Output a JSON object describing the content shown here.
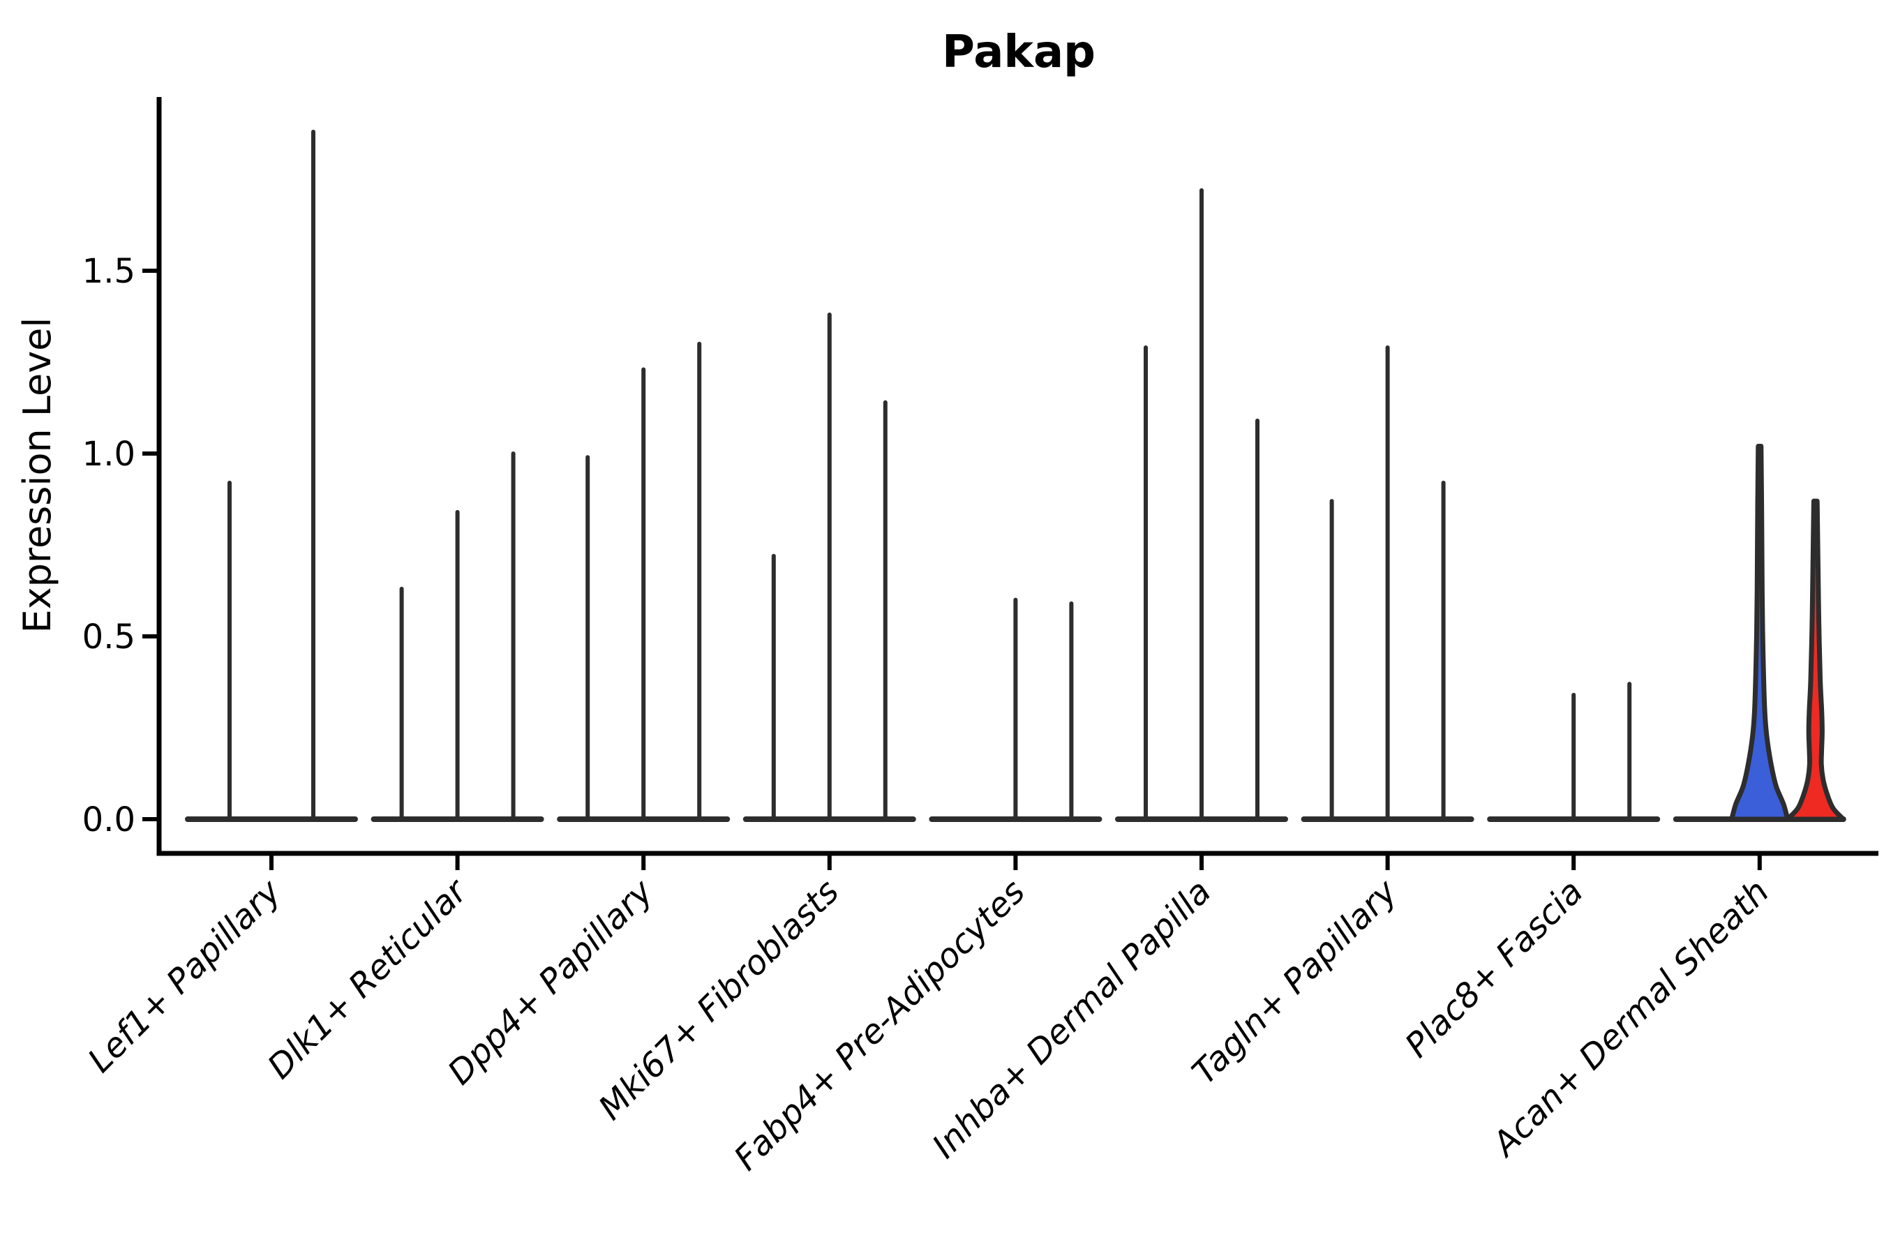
{
  "title": "Pakap",
  "axes": {
    "y_label": "Expression Level",
    "y_ticks": [
      {
        "label": "0.0",
        "value": 0.0
      },
      {
        "label": "0.5",
        "value": 0.5
      },
      {
        "label": "1.0",
        "value": 1.0
      },
      {
        "label": "1.5",
        "value": 1.5
      }
    ]
  },
  "colors": {
    "axis": "#000000",
    "violin_stroke": "#2d2d2d",
    "blue_fill": "#3B5FD8",
    "red_fill": "#EE2A23",
    "background": "#ffffff"
  },
  "chart_data": {
    "type": "violin",
    "title": "Pakap",
    "xlabel": "",
    "ylabel": "Expression Level",
    "ylim": [
      -0.09,
      1.97
    ],
    "yticks": [
      0.0,
      0.5,
      1.0,
      1.5
    ],
    "grid": false,
    "legend": "none",
    "categories": [
      "Lef1+ Papillary",
      "Dlk1+ Reticular",
      "Dpp4+ Papillary",
      "Mki67+ Fibroblasts",
      "Fabp4+ Pre-Adipocytes",
      "Inhba+ Dermal Papilla",
      "Tagln+ Papillary",
      "Plac8+ Fascia",
      "Acan+ Dermal Sheath"
    ],
    "groups": [
      {
        "category": "Lef1+ Papillary",
        "violins": [
          {
            "style": "spike",
            "max": 0.92
          },
          {
            "style": "spike",
            "max": 1.88
          }
        ]
      },
      {
        "category": "Dlk1+ Reticular",
        "violins": [
          {
            "style": "spike",
            "max": 0.63
          },
          {
            "style": "spike",
            "max": 0.84
          },
          {
            "style": "spike",
            "max": 1.0
          }
        ]
      },
      {
        "category": "Dpp4+ Papillary",
        "violins": [
          {
            "style": "spike",
            "max": 0.99
          },
          {
            "style": "spike",
            "max": 1.23
          },
          {
            "style": "spike",
            "max": 1.3
          }
        ]
      },
      {
        "category": "Mki67+ Fibroblasts",
        "violins": [
          {
            "style": "spike",
            "max": 0.72
          },
          {
            "style": "spike",
            "max": 1.38
          },
          {
            "style": "spike",
            "max": 1.14
          }
        ]
      },
      {
        "category": "Fabp4+ Pre-Adipocytes",
        "violins": [
          {
            "style": "flat",
            "max": 0
          },
          {
            "style": "spike",
            "max": 0.6
          },
          {
            "style": "spike",
            "max": 0.59
          }
        ]
      },
      {
        "category": "Inhba+ Dermal Papilla",
        "violins": [
          {
            "style": "spike",
            "max": 1.29
          },
          {
            "style": "spike",
            "max": 1.72
          },
          {
            "style": "spike",
            "max": 1.09
          }
        ]
      },
      {
        "category": "Tagln+ Papillary",
        "violins": [
          {
            "style": "spike",
            "max": 0.87
          },
          {
            "style": "spike",
            "max": 1.29
          },
          {
            "style": "spike",
            "max": 0.92
          }
        ]
      },
      {
        "category": "Plac8+ Fascia",
        "violins": [
          {
            "style": "flat",
            "max": 0
          },
          {
            "style": "spike",
            "max": 0.34
          },
          {
            "style": "spike",
            "max": 0.37
          }
        ]
      },
      {
        "category": "Acan+ Dermal Sheath",
        "violins": [
          {
            "style": "flat",
            "max": 0
          },
          {
            "style": "filled",
            "max": 1.02,
            "fill": "#3B5FD8",
            "profile": [
              [
                1.02,
                0.05
              ],
              [
                0.86,
                0.07
              ],
              [
                0.62,
                0.09
              ],
              [
                0.46,
                0.12
              ],
              [
                0.3,
                0.18
              ],
              [
                0.23,
                0.25
              ],
              [
                0.15,
                0.41
              ],
              [
                0.09,
                0.59
              ],
              [
                0.04,
                0.86
              ],
              [
                0.0,
                1.0
              ]
            ]
          },
          {
            "style": "filled",
            "max": 0.87,
            "fill": "#EE2A23",
            "profile": [
              [
                0.87,
                0.06
              ],
              [
                0.7,
                0.09
              ],
              [
                0.54,
                0.12
              ],
              [
                0.38,
                0.17
              ],
              [
                0.3,
                0.22
              ],
              [
                0.24,
                0.24
              ],
              [
                0.19,
                0.22
              ],
              [
                0.15,
                0.21
              ],
              [
                0.11,
                0.27
              ],
              [
                0.07,
                0.41
              ],
              [
                0.03,
                0.63
              ],
              [
                0.0,
                1.0
              ]
            ]
          }
        ]
      }
    ]
  }
}
